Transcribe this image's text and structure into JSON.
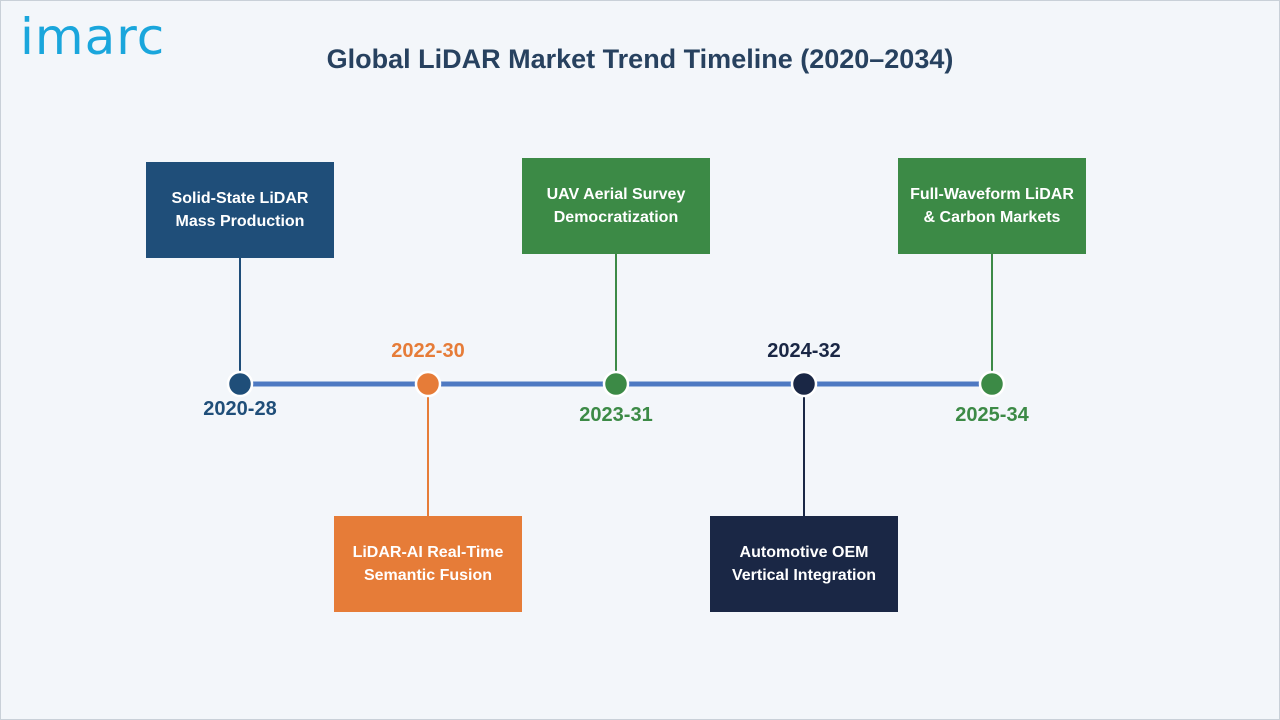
{
  "logo": {
    "text": "imarc",
    "color": "#1aa6dc"
  },
  "title": "Global LiDAR Market Trend Timeline (2020–2034)",
  "timeline": {
    "line_color": "#4e79c2",
    "milestones": [
      {
        "year": "2020-28",
        "label": "Solid-State LiDAR\nMass Production",
        "color": "#1f4e79",
        "position": "above"
      },
      {
        "year": "2022-30",
        "label": "LiDAR-AI Real-Time\nSemantic Fusion",
        "color": "#e67c38",
        "position": "below"
      },
      {
        "year": "2023-31",
        "label": "UAV Aerial Survey\nDemocratization",
        "color": "#3c8a46",
        "position": "above"
      },
      {
        "year": "2024-32",
        "label": "Automotive OEM\nVertical Integration",
        "color": "#1a2745",
        "position": "below"
      },
      {
        "year": "2025-34",
        "label": "Full-Waveform LiDAR\n& Carbon Markets",
        "color": "#3c8a46",
        "position": "above"
      }
    ]
  }
}
